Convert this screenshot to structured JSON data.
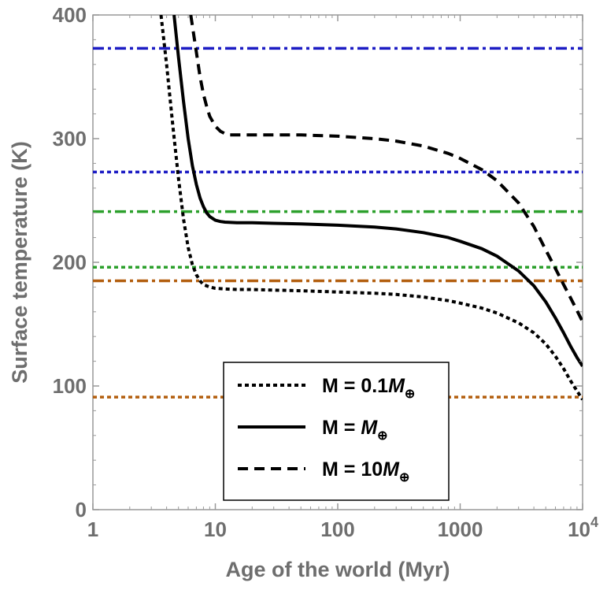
{
  "chart_data": {
    "type": "line",
    "xlabel": "Age of the world (Myr)",
    "ylabel": "Surface temperature (K)",
    "x_scale": "log",
    "xlim": [
      1,
      10000
    ],
    "ylim": [
      0,
      400
    ],
    "x_ticks": [
      {
        "value": 1,
        "label": "1"
      },
      {
        "value": 10,
        "label": "10"
      },
      {
        "value": 100,
        "label": "100"
      },
      {
        "value": 1000,
        "label": "1000"
      },
      {
        "value": 10000,
        "label": "10",
        "sup": "4"
      }
    ],
    "y_ticks": [
      {
        "value": 0,
        "label": "0"
      },
      {
        "value": 100,
        "label": "100"
      },
      {
        "value": 200,
        "label": "200"
      },
      {
        "value": 300,
        "label": "300"
      },
      {
        "value": 400,
        "label": "400"
      }
    ],
    "grid": false,
    "legend_position": "bottom-center",
    "series": [
      {
        "legend": {
          "prefix": "M = 0.1",
          "italic": "M",
          "sub": "⊕"
        },
        "style": "dotted",
        "color": "#000000",
        "x": [
          3.6,
          4.0,
          4.5,
          5.0,
          5.5,
          6.0,
          6.5,
          7.0,
          7.5,
          8.0,
          9.0,
          10,
          12,
          15,
          20,
          30,
          50,
          100,
          200,
          300,
          500,
          800,
          1000,
          1500,
          2000,
          3000,
          4000,
          5000,
          6000,
          7000,
          8000,
          9000,
          10000
        ],
        "y": [
          400,
          360,
          310,
          268,
          235,
          212,
          198,
          190,
          185,
          182,
          180,
          179,
          178.5,
          178,
          178,
          177.5,
          177,
          176,
          175,
          174,
          172,
          169,
          167,
          163,
          159,
          151,
          143,
          134,
          124,
          114,
          104,
          96,
          89
        ]
      },
      {
        "legend": {
          "prefix": "M = ",
          "italic": "M",
          "sub": "⊕"
        },
        "style": "solid",
        "color": "#000000",
        "x": [
          4.6,
          5.0,
          5.5,
          6.0,
          6.5,
          7.0,
          7.5,
          8.0,
          8.5,
          9.0,
          10,
          11,
          12,
          15,
          20,
          30,
          50,
          100,
          200,
          300,
          500,
          800,
          1000,
          1500,
          2000,
          3000,
          4000,
          5000,
          6000,
          7000,
          8000,
          9000,
          10000
        ],
        "y": [
          400,
          366,
          330,
          300,
          278,
          263,
          252,
          245,
          240,
          237,
          234,
          233,
          232.5,
          232,
          232,
          231.5,
          231,
          230,
          228.5,
          227,
          224,
          220,
          217,
          211,
          205,
          193,
          181,
          168,
          155,
          143,
          132,
          123,
          116
        ]
      },
      {
        "legend": {
          "prefix": "M = 10",
          "italic": "M",
          "sub": "⊕"
        },
        "style": "dashed",
        "color": "#000000",
        "x": [
          6.3,
          7.0,
          7.5,
          8.0,
          8.5,
          9.0,
          10,
          11,
          12,
          13,
          15,
          20,
          30,
          50,
          100,
          200,
          300,
          500,
          800,
          1000,
          1500,
          2000,
          3000,
          4000,
          5000,
          6000,
          7000,
          8000,
          9000,
          10000
        ],
        "y": [
          400,
          370,
          350,
          336,
          326,
          318,
          310,
          306,
          304,
          303,
          303,
          303,
          303,
          303,
          302,
          300,
          298,
          294,
          288,
          284,
          275,
          266,
          248,
          229,
          210,
          195,
          182,
          171,
          161,
          152
        ]
      }
    ],
    "reference_lines": [
      {
        "y": 373,
        "color": "#1c1cc4",
        "style": "dashdot"
      },
      {
        "y": 273,
        "color": "#1c1cc4",
        "style": "dotted"
      },
      {
        "y": 241,
        "color": "#2ca02c",
        "style": "dashdot"
      },
      {
        "y": 196,
        "color": "#2ca02c",
        "style": "dotted"
      },
      {
        "y": 185,
        "color": "#b35f0f",
        "style": "dashdot"
      },
      {
        "y": 91,
        "color": "#b35f0f",
        "style": "dotted"
      }
    ]
  }
}
